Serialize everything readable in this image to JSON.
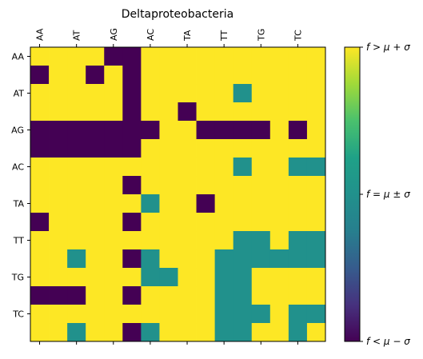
{
  "chart_data": {
    "type": "heatmap",
    "title": "Deltaproteobacteria",
    "x_ticks": [
      "AA",
      "AT",
      "AG",
      "AC",
      "TA",
      "TT",
      "TG",
      "TC"
    ],
    "y_ticks": [
      "AA",
      "AT",
      "AG",
      "AC",
      "TA",
      "TT",
      "TG",
      "TC"
    ],
    "rows": 16,
    "cols": 16,
    "levels": {
      "0": "f < mu - sigma",
      "1": "f = mu +/- sigma",
      "2": "f > mu + sigma"
    },
    "grid": false,
    "colorbar": {
      "labels": [
        "f > μ + σ",
        "f = μ ± σ",
        "f < μ − σ"
      ],
      "colormap": "viridis"
    },
    "values": [
      [
        2,
        2,
        2,
        2,
        0,
        0,
        2,
        2,
        2,
        2,
        2,
        2,
        2,
        2,
        2,
        2
      ],
      [
        0,
        2,
        2,
        0,
        2,
        0,
        2,
        2,
        2,
        2,
        2,
        2,
        2,
        2,
        2,
        2
      ],
      [
        2,
        2,
        2,
        2,
        2,
        0,
        2,
        2,
        2,
        2,
        2,
        1,
        2,
        2,
        2,
        2
      ],
      [
        2,
        2,
        2,
        2,
        2,
        0,
        2,
        2,
        0,
        2,
        2,
        2,
        2,
        2,
        2,
        2
      ],
      [
        0,
        0,
        0,
        0,
        0,
        0,
        0,
        2,
        2,
        0,
        0,
        0,
        0,
        2,
        0,
        2
      ],
      [
        0,
        0,
        0,
        0,
        0,
        0,
        2,
        2,
        2,
        2,
        2,
        2,
        2,
        2,
        2,
        2
      ],
      [
        2,
        2,
        2,
        2,
        2,
        2,
        2,
        2,
        2,
        2,
        2,
        1,
        2,
        2,
        1,
        1
      ],
      [
        2,
        2,
        2,
        2,
        2,
        0,
        2,
        2,
        2,
        2,
        2,
        2,
        2,
        2,
        2,
        2
      ],
      [
        2,
        2,
        2,
        2,
        2,
        2,
        1,
        2,
        2,
        0,
        2,
        2,
        2,
        2,
        2,
        2
      ],
      [
        0,
        2,
        2,
        2,
        2,
        0,
        2,
        2,
        2,
        2,
        2,
        2,
        2,
        2,
        2,
        2
      ],
      [
        2,
        2,
        2,
        2,
        2,
        2,
        2,
        2,
        2,
        2,
        2,
        1,
        1,
        2,
        1,
        1
      ],
      [
        2,
        2,
        1,
        2,
        2,
        0,
        1,
        2,
        2,
        2,
        1,
        1,
        1,
        1,
        1,
        1
      ],
      [
        2,
        2,
        2,
        2,
        2,
        2,
        1,
        1,
        2,
        2,
        1,
        1,
        2,
        2,
        2,
        2
      ],
      [
        0,
        0,
        0,
        2,
        2,
        0,
        2,
        2,
        2,
        2,
        1,
        1,
        2,
        2,
        2,
        2
      ],
      [
        2,
        2,
        2,
        2,
        2,
        2,
        2,
        2,
        2,
        2,
        1,
        1,
        1,
        2,
        1,
        1
      ],
      [
        2,
        2,
        1,
        2,
        2,
        0,
        1,
        2,
        2,
        2,
        1,
        1,
        2,
        2,
        1,
        2
      ]
    ],
    "colors": {
      "low": "#440154",
      "mid": "#21918c",
      "high": "#fde725"
    }
  }
}
